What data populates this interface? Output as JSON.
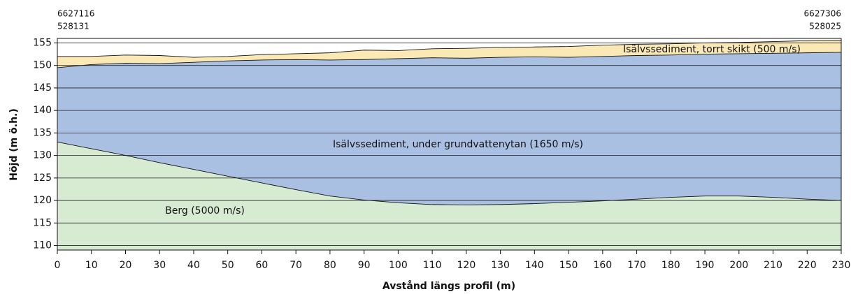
{
  "chart_data": {
    "type": "area",
    "xlabel": "Avstånd längs profil (m)",
    "ylabel": "Höjd (m ö.h.)",
    "start_coordinates": [
      "6627116",
      "528131"
    ],
    "end_coordinates": [
      "6627306",
      "528025"
    ],
    "x": [
      0,
      10,
      20,
      30,
      40,
      50,
      60,
      70,
      80,
      90,
      100,
      110,
      120,
      130,
      140,
      150,
      160,
      170,
      180,
      190,
      200,
      210,
      220,
      230
    ],
    "series": [
      {
        "name": "Isälvssediment, torrt skikt (500 m/s)",
        "color": "#fbe9b5",
        "values": [
          152,
          152,
          152.3,
          152.2,
          151.8,
          152,
          152.4,
          152.6,
          152.8,
          153.4,
          153.3,
          153.7,
          153.8,
          154,
          154.1,
          154.2,
          154.5,
          154.7,
          154.8,
          155,
          155.1,
          155.3,
          155.5,
          155.6
        ]
      },
      {
        "name": "Isälvssediment, under grundvattenytan (1650 m/s)",
        "color": "#aac0e3",
        "values": [
          149.5,
          150.2,
          150.5,
          150.4,
          150.7,
          151,
          151.2,
          151.3,
          151.2,
          151.3,
          151.5,
          151.7,
          151.6,
          151.8,
          151.9,
          151.8,
          152,
          152.2,
          152.3,
          152.5,
          152.6,
          152.7,
          152.8,
          152.9
        ]
      },
      {
        "name": "Berg (5000 m/s)",
        "color": "#d6ebd2",
        "values": [
          133,
          131.5,
          130,
          128.4,
          126.9,
          125.4,
          123.9,
          122.4,
          121,
          120.1,
          119.5,
          119.1,
          119,
          119.1,
          119.3,
          119.6,
          119.9,
          120.3,
          120.7,
          121,
          121,
          120.7,
          120.3,
          120
        ]
      }
    ],
    "xlim": [
      0,
      230
    ],
    "xticks": [
      0,
      10,
      20,
      30,
      40,
      50,
      60,
      70,
      80,
      90,
      100,
      110,
      120,
      130,
      140,
      150,
      160,
      170,
      180,
      190,
      200,
      210,
      220,
      230
    ],
    "ylim": [
      109,
      156
    ],
    "yticks": [
      110,
      115,
      120,
      125,
      130,
      135,
      140,
      145,
      150,
      155
    ],
    "grid": true
  }
}
